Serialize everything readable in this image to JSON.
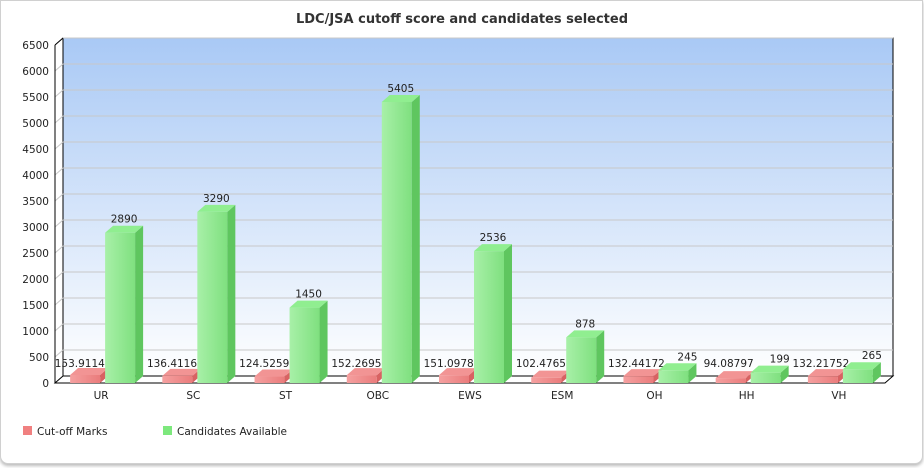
{
  "chart_data": {
    "type": "bar",
    "title": "LDC/JSA cutoff score and candidates selected",
    "xlabel": "",
    "ylabel": "",
    "ylim": [
      0,
      6500
    ],
    "yticks": [
      "0",
      "500",
      "1000",
      "1500",
      "2000",
      "2500",
      "3000",
      "3500",
      "4000",
      "4500",
      "5000",
      "5500",
      "6000",
      "6500"
    ],
    "grid": true,
    "legend_position": "bottom-left",
    "categories": [
      "UR",
      "SC",
      "ST",
      "OBC",
      "EWS",
      "ESM",
      "OH",
      "HH",
      "VH"
    ],
    "series": [
      {
        "name": "Cut-off Marks",
        "color": "#f08080",
        "values": [
          153.91142,
          136.41166,
          124.52592,
          152.26953,
          151.09782,
          102.47651,
          132.44172,
          94.08797,
          132.21752
        ],
        "labels": [
          "153.91142",
          "136.41166",
          "124.52592",
          "152.26953",
          "151.09782",
          "102.47651",
          "132.44172",
          "94.08797",
          "132.21752"
        ]
      },
      {
        "name": "Candidates Available",
        "color": "#7de87d",
        "values": [
          2890,
          3290,
          1450,
          5405,
          2536,
          878,
          245,
          199,
          265
        ],
        "labels": [
          "2890",
          "3290",
          "1450",
          "5405",
          "2536",
          "878",
          "245",
          "199",
          "265"
        ]
      }
    ]
  }
}
